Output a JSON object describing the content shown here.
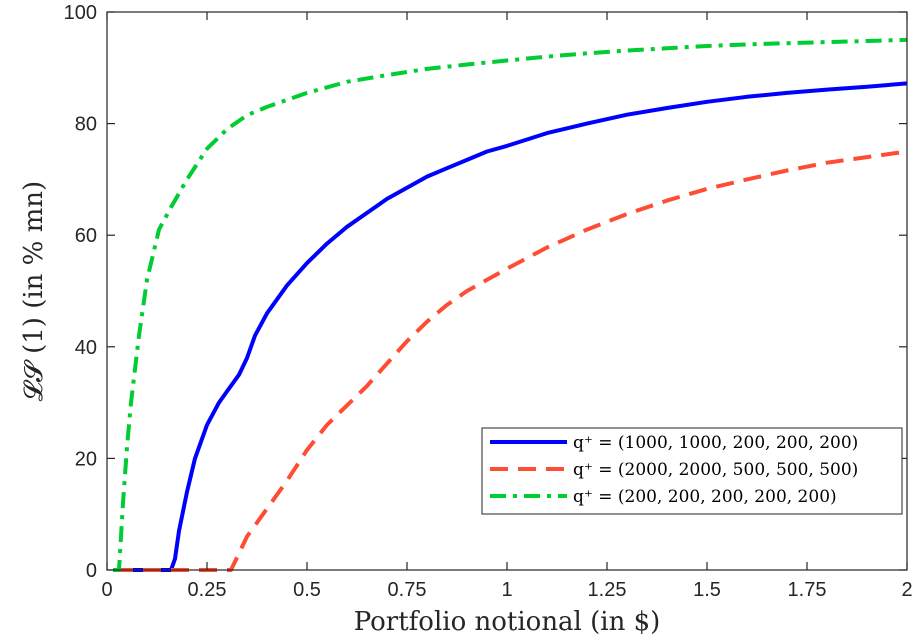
{
  "chart_data": {
    "type": "line",
    "title": "",
    "xlabel": "Portfolio notional (in $)",
    "ylabel": "𝓛𝓢 (1) (in % mn)",
    "xlim": [
      0,
      2
    ],
    "ylim": [
      0,
      100
    ],
    "xticks": [
      0,
      0.25,
      0.5,
      0.75,
      1,
      1.25,
      1.5,
      1.75,
      2
    ],
    "xtick_labels": [
      "0",
      "0.25",
      "0.5",
      "0.75",
      "1",
      "1.25",
      "1.5",
      "1.75",
      "2"
    ],
    "yticks": [
      0,
      20,
      40,
      60,
      80,
      100
    ],
    "ytick_labels": [
      "0",
      "20",
      "40",
      "60",
      "80",
      "100"
    ],
    "grid": false,
    "legend_position": "bottom-right",
    "series": [
      {
        "name": "q⁺ = (1000, 1000, 200, 200, 200)",
        "color": "#0000ff",
        "style": "solid",
        "x": [
          0.02,
          0.16,
          0.17,
          0.18,
          0.2,
          0.22,
          0.25,
          0.28,
          0.3,
          0.33,
          0.35,
          0.37,
          0.4,
          0.45,
          0.5,
          0.55,
          0.6,
          0.65,
          0.7,
          0.75,
          0.8,
          0.85,
          0.9,
          0.95,
          1.0,
          1.1,
          1.2,
          1.3,
          1.4,
          1.5,
          1.6,
          1.7,
          1.8,
          1.9,
          2.0
        ],
        "y": [
          0,
          0,
          2,
          7,
          14,
          20,
          26,
          30,
          32,
          35,
          38,
          42,
          46,
          51,
          55,
          58.5,
          61.5,
          64,
          66.5,
          68.5,
          70.5,
          72,
          73.5,
          75,
          76,
          78.3,
          80,
          81.6,
          82.8,
          83.9,
          84.8,
          85.5,
          86.1,
          86.6,
          87.2
        ]
      },
      {
        "name": "q⁺ = (2000, 2000, 500, 500, 500)",
        "color": "#ff4d33",
        "style": "dashed",
        "x": [
          0.02,
          0.31,
          0.33,
          0.35,
          0.38,
          0.4,
          0.45,
          0.5,
          0.55,
          0.6,
          0.65,
          0.7,
          0.75,
          0.8,
          0.85,
          0.9,
          0.95,
          1.0,
          1.1,
          1.2,
          1.3,
          1.4,
          1.5,
          1.6,
          1.7,
          1.8,
          1.9,
          2.0
        ],
        "y": [
          0,
          0,
          3,
          6,
          9,
          11,
          16,
          21.5,
          26,
          29.5,
          33,
          37,
          41,
          44.5,
          47.5,
          50,
          52,
          54,
          57.8,
          61,
          63.8,
          66.2,
          68.3,
          70,
          71.6,
          73,
          74,
          75
        ]
      },
      {
        "name": "q⁺ = (200, 200, 200, 200, 200)",
        "color": "#00cc33",
        "style": "dashdot",
        "x": [
          0.015,
          0.03,
          0.04,
          0.05,
          0.06,
          0.08,
          0.1,
          0.13,
          0.16,
          0.2,
          0.25,
          0.3,
          0.35,
          0.4,
          0.5,
          0.6,
          0.7,
          0.8,
          0.9,
          1.0,
          1.1,
          1.2,
          1.3,
          1.4,
          1.5,
          1.6,
          1.7,
          1.8,
          1.9,
          2.0
        ],
        "y": [
          0,
          0,
          12,
          22,
          30,
          42,
          52,
          61,
          65,
          70,
          75.5,
          79,
          81.5,
          83,
          85.5,
          87.5,
          88.7,
          89.8,
          90.6,
          91.3,
          92,
          92.6,
          93.1,
          93.5,
          93.9,
          94.2,
          94.4,
          94.6,
          94.8,
          95
        ]
      }
    ]
  }
}
